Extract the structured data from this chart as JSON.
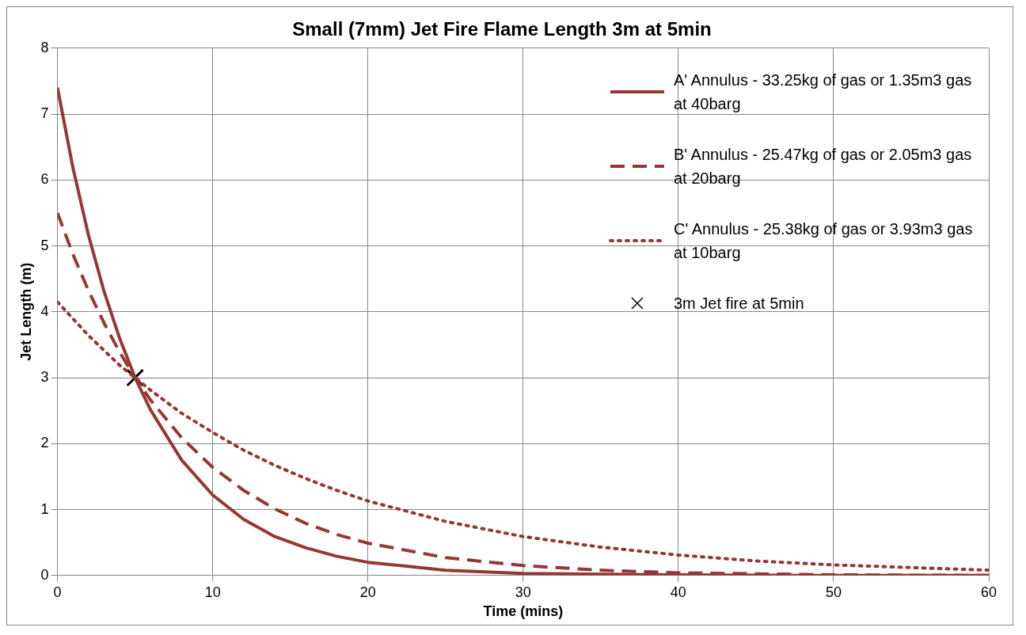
{
  "chart_data": {
    "type": "line",
    "title": "Small (7mm) Jet Fire Flame Length 3m at 5min",
    "xlabel": "Time (mins)",
    "ylabel": "Jet Length (m)",
    "xlim": [
      0,
      60
    ],
    "xticks": [
      0,
      10,
      20,
      30,
      40,
      50,
      60
    ],
    "ylim": [
      0,
      8
    ],
    "yticks": [
      0,
      1,
      2,
      3,
      4,
      5,
      6,
      7,
      8
    ],
    "grid": true,
    "legend": "top right",
    "marker": "none",
    "series": [
      {
        "name": "A' Annulus - 33.25kg of gas or 1.35m3 gas at 40barg",
        "color": "#953735",
        "line_style": "solid",
        "x": [
          0,
          1,
          2,
          3,
          4,
          5,
          6,
          8,
          10,
          12,
          14,
          16,
          18,
          20,
          25,
          30,
          40,
          50,
          60
        ],
        "values": [
          7.4,
          6.18,
          5.16,
          4.31,
          3.6,
          3.0,
          2.51,
          1.75,
          1.22,
          0.85,
          0.59,
          0.42,
          0.29,
          0.2,
          0.08,
          0.03,
          0.01,
          0.0,
          0.0
        ]
      },
      {
        "name": "B' Annulus - 25.47kg of gas or 2.05m3  gas at 20barg",
        "color": "#953735",
        "line_style": "dashed",
        "x": [
          0,
          1,
          2,
          3,
          4,
          5,
          6,
          8,
          10,
          12,
          14,
          16,
          18,
          20,
          25,
          30,
          35,
          40,
          50,
          60
        ],
        "values": [
          5.5,
          4.87,
          4.32,
          3.83,
          3.39,
          3.0,
          2.66,
          2.09,
          1.64,
          1.29,
          1.01,
          0.79,
          0.62,
          0.49,
          0.27,
          0.15,
          0.08,
          0.04,
          0.01,
          0.0
        ]
      },
      {
        "name": "C' Annulus - 25.38kg of gas or 3.93m3  gas at 10barg",
        "color": "#953735",
        "line_style": "dotted",
        "x": [
          0,
          2,
          4,
          5,
          6,
          8,
          10,
          12,
          14,
          16,
          18,
          20,
          25,
          30,
          35,
          40,
          45,
          50,
          55,
          60
        ],
        "values": [
          4.15,
          3.64,
          3.19,
          3.0,
          2.81,
          2.46,
          2.17,
          1.9,
          1.67,
          1.47,
          1.29,
          1.13,
          0.82,
          0.59,
          0.43,
          0.31,
          0.22,
          0.16,
          0.12,
          0.08
        ]
      },
      {
        "name": "3m Jet fire at 5min",
        "type": "scatter",
        "marker": "cross",
        "color": "#000000",
        "x": [
          5
        ],
        "values": [
          3
        ]
      }
    ]
  }
}
